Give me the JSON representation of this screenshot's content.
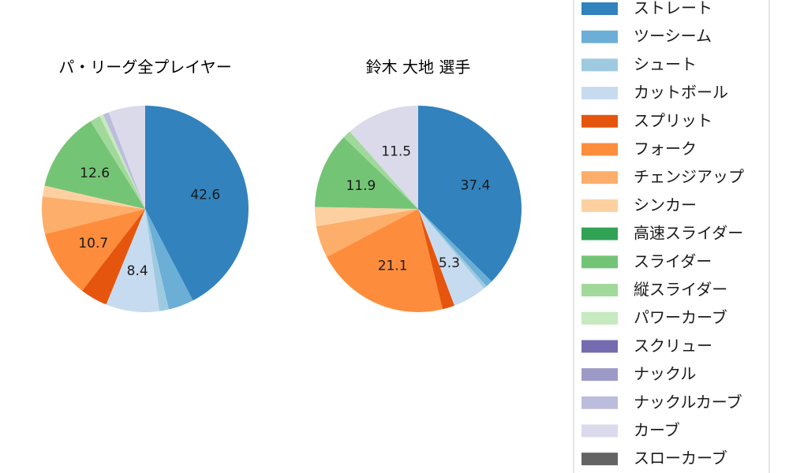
{
  "chart_data": [
    {
      "type": "pie",
      "title": "パ・リーグ全プレイヤー",
      "categories": [
        "ストレート",
        "ツーシーム",
        "シュート",
        "カットボール",
        "スプリット",
        "フォーク",
        "チェンジアップ",
        "シンカー",
        "高速スライダー",
        "スライダー",
        "縦スライダー",
        "パワーカーブ",
        "スクリュー",
        "ナックル",
        "ナックルカーブ",
        "カーブ",
        "スローカーブ"
      ],
      "values": [
        42.6,
        4.0,
        1.5,
        8.4,
        4.3,
        10.7,
        5.9,
        1.7,
        0.0,
        12.6,
        1.6,
        0.6,
        0.0,
        0.0,
        0.9,
        5.8,
        0.0
      ],
      "data_labels": [
        "42.6",
        "",
        "",
        "8.4",
        "",
        "10.7",
        "",
        "",
        "",
        "12.6",
        "",
        "",
        "",
        "",
        "",
        "",
        ""
      ]
    },
    {
      "type": "pie",
      "title": "鈴木 大地  選手",
      "categories": [
        "ストレート",
        "ツーシーム",
        "シュート",
        "カットボール",
        "スプリット",
        "フォーク",
        "チェンジアップ",
        "シンカー",
        "高速スライダー",
        "スライダー",
        "縦スライダー",
        "パワーカーブ",
        "スクリュー",
        "ナックル",
        "ナックルカーブ",
        "カーブ",
        "スローカーブ"
      ],
      "values": [
        37.4,
        1.1,
        0.5,
        5.3,
        1.9,
        21.1,
        5.0,
        3.0,
        0.0,
        11.9,
        1.3,
        0.0,
        0.0,
        0.0,
        0.0,
        11.5,
        0.0
      ],
      "data_labels": [
        "37.4",
        "",
        "",
        "5.3",
        "",
        "21.1",
        "",
        "",
        "",
        "11.9",
        "",
        "",
        "",
        "",
        "",
        "11.5",
        ""
      ]
    }
  ],
  "legend": {
    "placement": "right",
    "items": [
      {
        "label": "ストレート",
        "color": "#3182bd"
      },
      {
        "label": "ツーシーム",
        "color": "#6baed6"
      },
      {
        "label": "シュート",
        "color": "#9ecae1"
      },
      {
        "label": "カットボール",
        "color": "#c6dbef"
      },
      {
        "label": "スプリット",
        "color": "#e6550d"
      },
      {
        "label": "フォーク",
        "color": "#fd8d3c"
      },
      {
        "label": "チェンジアップ",
        "color": "#fdae6b"
      },
      {
        "label": "シンカー",
        "color": "#fdd0a2"
      },
      {
        "label": "高速スライダー",
        "color": "#31a354"
      },
      {
        "label": "スライダー",
        "color": "#74c476"
      },
      {
        "label": "縦スライダー",
        "color": "#a1d99b"
      },
      {
        "label": "パワーカーブ",
        "color": "#c7e9c0"
      },
      {
        "label": "スクリュー",
        "color": "#756bb1"
      },
      {
        "label": "ナックル",
        "color": "#9e9ac8"
      },
      {
        "label": "ナックルカーブ",
        "color": "#bcbddc"
      },
      {
        "label": "カーブ",
        "color": "#dadaeb"
      },
      {
        "label": "スローカーブ",
        "color": "#636363"
      }
    ]
  }
}
